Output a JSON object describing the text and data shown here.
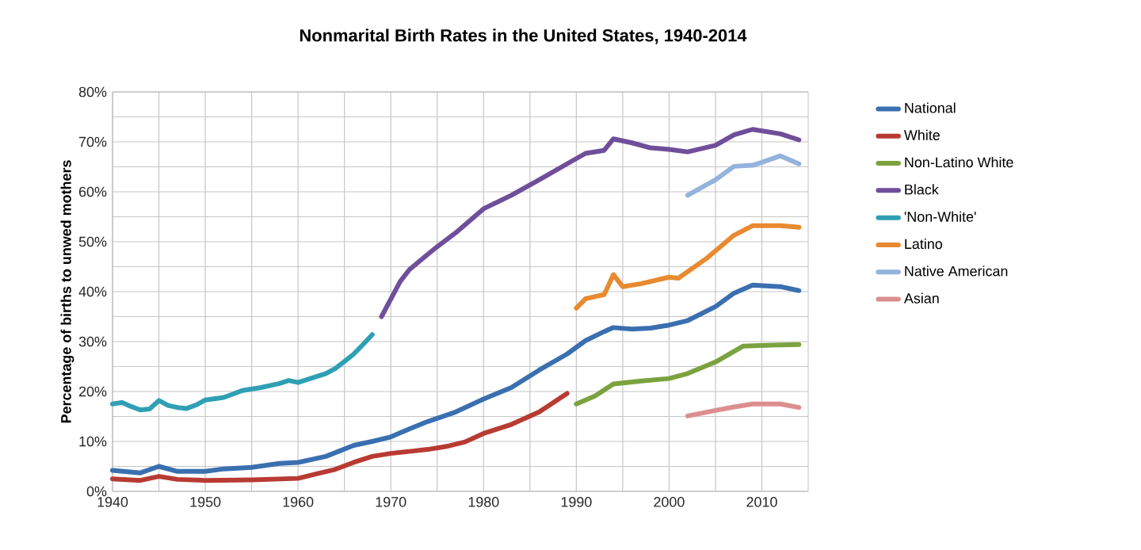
{
  "chart_data": {
    "type": "line",
    "title": "Nonmarital Birth Rates in the United States, 1940-2014",
    "ylabel": "Percentage of births to unwed mothers",
    "xlim": [
      1940,
      2015
    ],
    "ylim": [
      0,
      80
    ],
    "xticks": [
      1940,
      {
        "value": 1945,
        "label": null
      },
      1950,
      {
        "value": 1955,
        "label": null
      },
      1960,
      {
        "value": 1965,
        "label": null
      },
      1970,
      {
        "value": 1975,
        "label": null
      },
      1980,
      {
        "value": 1985,
        "label": null
      },
      1990,
      {
        "value": 1995,
        "label": null
      },
      2000,
      {
        "value": 2005,
        "label": null
      },
      2010
    ],
    "yticks": [
      {
        "value": 0,
        "label": "0%"
      },
      {
        "value": 5,
        "label": null
      },
      {
        "value": 10,
        "label": "10%"
      },
      {
        "value": 15,
        "label": null
      },
      {
        "value": 20,
        "label": "20%"
      },
      {
        "value": 25,
        "label": null
      },
      {
        "value": 30,
        "label": "30%"
      },
      {
        "value": 35,
        "label": null
      },
      {
        "value": 40,
        "label": "40%"
      },
      {
        "value": 45,
        "label": null
      },
      {
        "value": 50,
        "label": "50%"
      },
      {
        "value": 55,
        "label": null
      },
      {
        "value": 60,
        "label": "60%"
      },
      {
        "value": 65,
        "label": null
      },
      {
        "value": 70,
        "label": "70%"
      },
      {
        "value": 75,
        "label": null
      },
      {
        "value": 80,
        "label": "80%"
      }
    ],
    "grid": true,
    "legend": "right",
    "marker": "none",
    "line_style": "solid",
    "series": [
      {
        "name": "National",
        "color": "#3a6fb0",
        "x": [
          1940,
          1943,
          1945,
          1947,
          1950,
          1952,
          1955,
          1958,
          1960,
          1963,
          1966,
          1968,
          1970,
          1972,
          1974,
          1977,
          1980,
          1983,
          1986,
          1989,
          1991,
          1993,
          1994,
          1996,
          1998,
          2000,
          2002,
          2005,
          2007,
          2009,
          2012,
          2014
        ],
        "values": [
          4.2,
          3.7,
          5.0,
          4.0,
          4.0,
          4.5,
          4.8,
          5.6,
          5.8,
          7.0,
          9.2,
          10.0,
          10.9,
          12.5,
          14.0,
          15.9,
          18.5,
          20.8,
          24.3,
          27.5,
          30.2,
          32.0,
          32.8,
          32.5,
          32.7,
          33.3,
          34.2,
          37.0,
          39.7,
          41.3,
          41.0,
          40.2
        ]
      },
      {
        "name": "White",
        "color": "#b83b33",
        "x": [
          1940,
          1943,
          1945,
          1947,
          1950,
          1955,
          1960,
          1962,
          1964,
          1966,
          1968,
          1970,
          1972,
          1974,
          1976,
          1978,
          1980,
          1983,
          1986,
          1989
        ],
        "values": [
          2.5,
          2.2,
          3.0,
          2.4,
          2.2,
          2.3,
          2.6,
          3.5,
          4.4,
          5.8,
          7.0,
          7.6,
          8.0,
          8.4,
          9.0,
          9.9,
          11.6,
          13.4,
          15.9,
          19.6
        ]
      },
      {
        "name": "Non-Latino White",
        "color": "#7ba23f",
        "x": [
          1990,
          1992,
          1994,
          1997,
          2000,
          2002,
          2005,
          2008,
          2011,
          2014
        ],
        "values": [
          17.5,
          19.1,
          21.5,
          22.1,
          22.6,
          23.6,
          25.9,
          29.1,
          29.3,
          29.4
        ]
      },
      {
        "name": "Black",
        "color": "#6f4e9a",
        "x": [
          1969,
          1970,
          1971,
          1972,
          1974,
          1975,
          1977,
          1980,
          1983,
          1986,
          1989,
          1991,
          1993,
          1994,
          1996,
          1998,
          2000,
          2002,
          2005,
          2007,
          2009,
          2012,
          2014
        ],
        "values": [
          35.0,
          38.5,
          42.0,
          44.4,
          47.5,
          49.0,
          51.8,
          56.6,
          59.3,
          62.4,
          65.6,
          67.7,
          68.3,
          70.6,
          69.8,
          68.8,
          68.5,
          68.0,
          69.3,
          71.4,
          72.5,
          71.6,
          70.4
        ]
      },
      {
        "name": "'Non-White'",
        "color": "#2fa0b4",
        "x": [
          1940,
          1941,
          1942,
          1943,
          1944,
          1945,
          1946,
          1947,
          1948,
          1949,
          1950,
          1952,
          1954,
          1956,
          1958,
          1959,
          1960,
          1962,
          1963,
          1964,
          1965,
          1966,
          1967,
          1968
        ],
        "values": [
          17.5,
          17.8,
          17.0,
          16.3,
          16.5,
          18.2,
          17.2,
          16.8,
          16.6,
          17.3,
          18.3,
          18.8,
          20.2,
          20.8,
          21.6,
          22.2,
          21.8,
          23.0,
          23.6,
          24.6,
          26.0,
          27.5,
          29.4,
          31.4
        ]
      },
      {
        "name": "Latino",
        "color": "#e88a2f",
        "x": [
          1990,
          1991,
          1993,
          1994,
          1995,
          1997,
          2000,
          2001,
          2004,
          2007,
          2009,
          2012,
          2014
        ],
        "values": [
          36.7,
          38.6,
          39.4,
          43.4,
          41.0,
          41.6,
          42.9,
          42.7,
          46.6,
          51.3,
          53.2,
          53.2,
          52.9
        ]
      },
      {
        "name": "Native American",
        "color": "#94b3dc",
        "x": [
          2002,
          2005,
          2007,
          2009,
          2010,
          2012,
          2014
        ],
        "values": [
          59.3,
          62.4,
          65.1,
          65.3,
          65.9,
          67.2,
          65.6
        ]
      },
      {
        "name": "Asian",
        "color": "#dc8e8e",
        "x": [
          2002,
          2005,
          2007,
          2009,
          2012,
          2014
        ],
        "values": [
          15.1,
          16.2,
          16.9,
          17.5,
          17.5,
          16.8
        ]
      }
    ]
  }
}
